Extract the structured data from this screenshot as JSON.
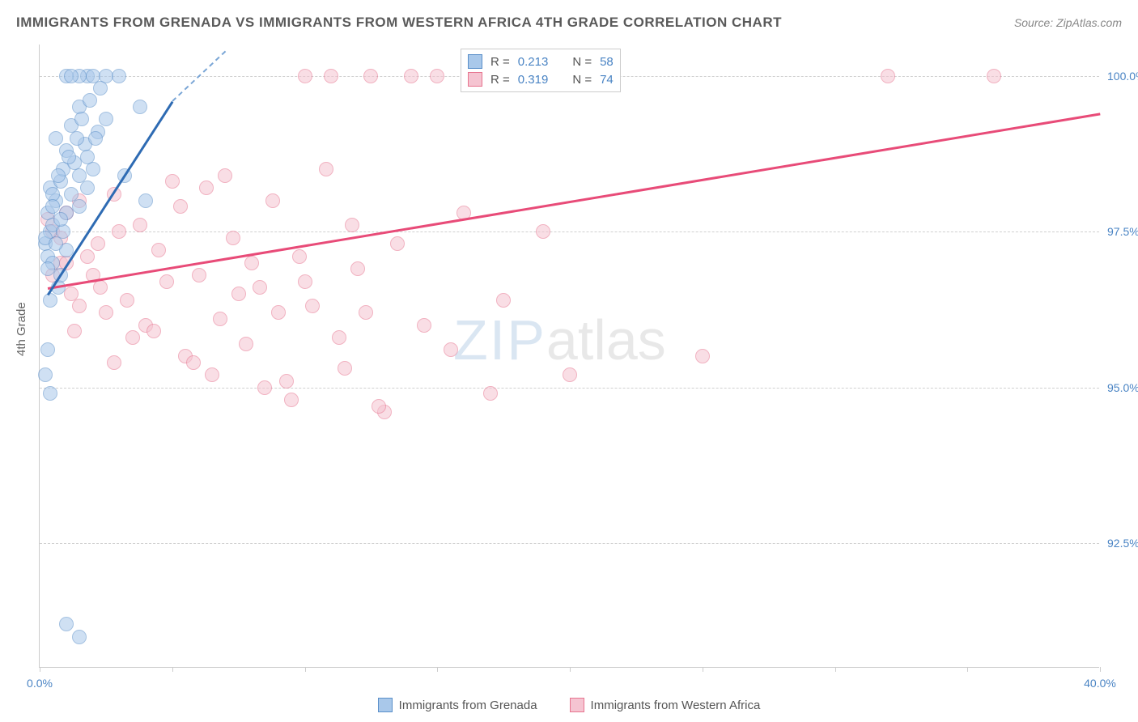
{
  "title": "IMMIGRANTS FROM GRENADA VS IMMIGRANTS FROM WESTERN AFRICA 4TH GRADE CORRELATION CHART",
  "source": "Source: ZipAtlas.com",
  "ylabel": "4th Grade",
  "watermark": {
    "zip": "ZIP",
    "atlas": "atlas"
  },
  "chart": {
    "type": "scatter",
    "xlim": [
      0,
      40
    ],
    "ylim": [
      90.5,
      100.5
    ],
    "yticks": [
      92.5,
      95.0,
      97.5,
      100.0
    ],
    "ytick_labels": [
      "92.5%",
      "95.0%",
      "97.5%",
      "100.0%"
    ],
    "xtick_marks": [
      0,
      5,
      10,
      15,
      20,
      25,
      30,
      35,
      40
    ],
    "xtick_labels": [
      {
        "x": 0,
        "label": "0.0%"
      },
      {
        "x": 40,
        "label": "40.0%"
      }
    ],
    "background_color": "#ffffff",
    "grid_color": "#d0d0d0",
    "marker_size": 18,
    "marker_opacity": 0.55
  },
  "series": {
    "grenada": {
      "name": "Immigrants from Grenada",
      "color_fill": "#a9c8ea",
      "color_stroke": "#5a8fc9",
      "R": "0.213",
      "N": "58",
      "trend": {
        "x1": 0.3,
        "y1": 96.5,
        "x2": 5.0,
        "y2": 99.6,
        "color": "#2e6bb3"
      },
      "trend_dash": {
        "x1": 5.0,
        "y1": 99.6,
        "x2": 7.0,
        "y2": 100.4,
        "color": "#7aa6d6"
      },
      "points": [
        [
          0.2,
          97.3
        ],
        [
          0.3,
          97.1
        ],
        [
          0.4,
          97.5
        ],
        [
          0.5,
          97.0
        ],
        [
          0.3,
          97.8
        ],
        [
          0.6,
          98.0
        ],
        [
          0.4,
          98.2
        ],
        [
          0.8,
          98.3
        ],
        [
          0.5,
          97.6
        ],
        [
          0.9,
          98.5
        ],
        [
          0.3,
          96.9
        ],
        [
          1.0,
          98.8
        ],
        [
          0.6,
          99.0
        ],
        [
          1.2,
          99.2
        ],
        [
          0.7,
          96.6
        ],
        [
          1.5,
          99.5
        ],
        [
          0.4,
          96.4
        ],
        [
          1.8,
          100.0
        ],
        [
          2.0,
          100.0
        ],
        [
          2.5,
          100.0
        ],
        [
          0.2,
          97.4
        ],
        [
          0.5,
          98.1
        ],
        [
          1.0,
          97.8
        ],
        [
          1.3,
          98.6
        ],
        [
          0.8,
          96.8
        ],
        [
          1.5,
          100.0
        ],
        [
          1.0,
          100.0
        ],
        [
          1.2,
          100.0
        ],
        [
          1.7,
          98.9
        ],
        [
          2.2,
          99.1
        ],
        [
          3.0,
          100.0
        ],
        [
          3.8,
          99.5
        ],
        [
          1.0,
          97.2
        ],
        [
          1.5,
          97.9
        ],
        [
          2.0,
          98.5
        ],
        [
          0.2,
          95.2
        ],
        [
          0.4,
          94.9
        ],
        [
          0.3,
          95.6
        ],
        [
          2.5,
          99.3
        ],
        [
          3.2,
          98.4
        ],
        [
          4.0,
          98.0
        ],
        [
          1.8,
          98.2
        ],
        [
          1.0,
          91.2
        ],
        [
          1.5,
          91.0
        ],
        [
          0.5,
          97.9
        ],
        [
          0.7,
          98.4
        ],
        [
          0.9,
          97.5
        ],
        [
          1.1,
          98.7
        ],
        [
          1.4,
          99.0
        ],
        [
          1.6,
          99.3
        ],
        [
          1.9,
          99.6
        ],
        [
          2.3,
          99.8
        ],
        [
          0.6,
          97.3
        ],
        [
          0.8,
          97.7
        ],
        [
          1.2,
          98.1
        ],
        [
          1.5,
          98.4
        ],
        [
          1.8,
          98.7
        ],
        [
          2.1,
          99.0
        ]
      ]
    },
    "westernafrica": {
      "name": "Immigrants from Western Africa",
      "color_fill": "#f5c4d1",
      "color_stroke": "#e7748f",
      "R": "0.319",
      "N": "74",
      "trend": {
        "x1": 0.3,
        "y1": 96.6,
        "x2": 40.0,
        "y2": 99.4,
        "color": "#e84b78"
      },
      "points": [
        [
          0.3,
          97.7
        ],
        [
          0.5,
          97.5
        ],
        [
          0.8,
          97.0
        ],
        [
          1.0,
          97.8
        ],
        [
          1.2,
          96.5
        ],
        [
          1.5,
          98.0
        ],
        [
          2.0,
          96.8
        ],
        [
          2.5,
          96.2
        ],
        [
          3.0,
          97.5
        ],
        [
          3.5,
          95.8
        ],
        [
          4.0,
          96.0
        ],
        [
          4.5,
          97.2
        ],
        [
          5.0,
          98.3
        ],
        [
          5.5,
          95.5
        ],
        [
          6.0,
          96.8
        ],
        [
          6.5,
          95.2
        ],
        [
          7.0,
          98.4
        ],
        [
          7.5,
          96.5
        ],
        [
          8.0,
          97.0
        ],
        [
          8.5,
          95.0
        ],
        [
          9.0,
          96.2
        ],
        [
          9.5,
          94.8
        ],
        [
          10.0,
          100.0
        ],
        [
          10.0,
          96.7
        ],
        [
          11.0,
          100.0
        ],
        [
          11.5,
          95.3
        ],
        [
          12.0,
          96.9
        ],
        [
          12.5,
          100.0
        ],
        [
          13.0,
          94.6
        ],
        [
          13.5,
          97.3
        ],
        [
          14.0,
          100.0
        ],
        [
          14.5,
          96.0
        ],
        [
          15.0,
          100.0
        ],
        [
          15.5,
          95.6
        ],
        [
          16.0,
          97.8
        ],
        [
          16.5,
          100.0
        ],
        [
          17.0,
          94.9
        ],
        [
          17.5,
          96.4
        ],
        [
          18.0,
          100.0
        ],
        [
          19.0,
          97.5
        ],
        [
          20.0,
          95.2
        ],
        [
          25.0,
          95.5
        ],
        [
          32.0,
          100.0
        ],
        [
          36.0,
          100.0
        ],
        [
          2.2,
          97.3
        ],
        [
          2.8,
          98.1
        ],
        [
          3.3,
          96.4
        ],
        [
          3.8,
          97.6
        ],
        [
          4.3,
          95.9
        ],
        [
          4.8,
          96.7
        ],
        [
          5.3,
          97.9
        ],
        [
          5.8,
          95.4
        ],
        [
          6.3,
          98.2
        ],
        [
          6.8,
          96.1
        ],
        [
          7.3,
          97.4
        ],
        [
          7.8,
          95.7
        ],
        [
          8.3,
          96.6
        ],
        [
          8.8,
          98.0
        ],
        [
          9.3,
          95.1
        ],
        [
          9.8,
          97.1
        ],
        [
          10.3,
          96.3
        ],
        [
          10.8,
          98.5
        ],
        [
          11.3,
          95.8
        ],
        [
          11.8,
          97.6
        ],
        [
          12.3,
          96.2
        ],
        [
          12.8,
          94.7
        ],
        [
          1.0,
          97.0
        ],
        [
          1.5,
          96.3
        ],
        [
          0.5,
          96.8
        ],
        [
          0.8,
          97.4
        ],
        [
          1.3,
          95.9
        ],
        [
          1.8,
          97.1
        ],
        [
          2.3,
          96.6
        ],
        [
          2.8,
          95.4
        ]
      ]
    }
  },
  "stats_labels": {
    "R": "R =",
    "N": "N ="
  }
}
